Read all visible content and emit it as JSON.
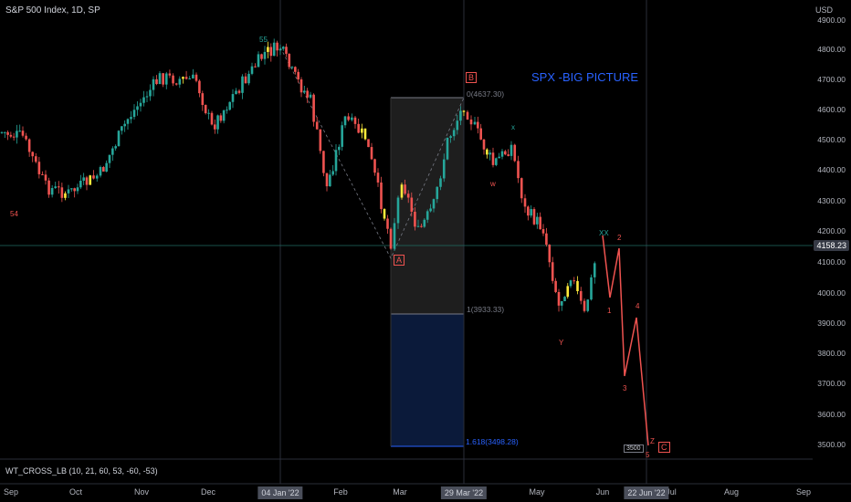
{
  "header": {
    "symbol_title": "S&P 500 Index, 1D, SP",
    "currency": "USD"
  },
  "price_axis": {
    "labels": [
      "4900.00",
      "4800.00",
      "4700.00",
      "4600.00",
      "4500.00",
      "4400.00",
      "4300.00",
      "4200.00",
      "4100.00",
      "4000.00",
      "3900.00",
      "3800.00",
      "3700.00",
      "3600.00",
      "3500.00"
    ],
    "current_price": "4158.23"
  },
  "time_axis": {
    "labels": [
      "Sep",
      "Oct",
      "Nov",
      "Dec",
      "Feb",
      "Mar",
      "May",
      "Jun",
      "Jul",
      "Aug",
      "Sep"
    ],
    "highlighted": [
      "04 Jan '22",
      "29 Mar '22",
      "22 Jun '22"
    ]
  },
  "indicator": {
    "label": "WT_CROSS_LB (10, 21, 60, 53, -60, -53)"
  },
  "annotations": {
    "headline": "SPX -BIG PICTURE",
    "point_A": "A",
    "point_B": "B",
    "point_C": "C",
    "fib_0": "0(4637.30)",
    "fib_1": "1(3933.33)",
    "fib_1618": "1.618(3498.28)",
    "level_box": "3500",
    "wave_labels": {
      "x": "x",
      "w": "w",
      "y": "Y",
      "xx": "XX",
      "z": "Z",
      "w1": "1",
      "w2": "2",
      "w3": "3",
      "w4": "4",
      "w5": "5",
      "n54": "54",
      "n55": "55"
    }
  },
  "colors": {
    "up": "#26a69a",
    "down": "#ef5350",
    "highlight": "#ffeb3b",
    "blue": "#2962ff"
  }
}
